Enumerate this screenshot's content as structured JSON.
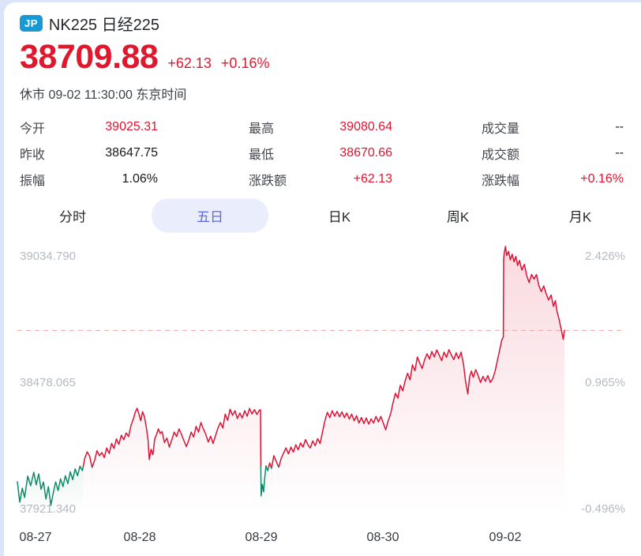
{
  "header": {
    "badge": "JP",
    "title": "NK225 日经225",
    "price": "38709.88",
    "change": "+62.13",
    "change_pct": "+0.16%",
    "status": "休市 09-02 11:30:00 东京时间"
  },
  "stats": {
    "columns": [
      {
        "rows": [
          {
            "label": "今开",
            "value": "39025.31"
          },
          {
            "label": "昨收",
            "value": "38647.75"
          },
          {
            "label": "振幅",
            "value": "1.06%"
          }
        ]
      },
      {
        "rows": [
          {
            "label": "最高",
            "value": "39080.64"
          },
          {
            "label": "最低",
            "value": "38670.66"
          },
          {
            "label": "涨跌额",
            "value": "+62.13"
          }
        ]
      },
      {
        "rows": [
          {
            "label": "成交量",
            "value": "--"
          },
          {
            "label": "成交额",
            "value": "--"
          },
          {
            "label": "涨跌幅",
            "value": "+0.16%"
          }
        ]
      }
    ]
  },
  "tabs": {
    "items": [
      {
        "label": "分时",
        "active": false
      },
      {
        "label": "五日",
        "active": true
      },
      {
        "label": "日K",
        "active": false
      },
      {
        "label": "周K",
        "active": false
      },
      {
        "label": "月K",
        "active": false
      }
    ]
  },
  "chart_data": {
    "type": "line",
    "title": "NK225 five-day minute line",
    "x_labels": [
      "08-27",
      "08-28",
      "08-29",
      "08-30",
      "09-02"
    ],
    "y_axis_labels": [
      "39034.790",
      "38478.065",
      "37921.340"
    ],
    "y_axis_values": [
      39034.79,
      38478.065,
      37921.34
    ],
    "right_axis_labels": [
      "2.426%",
      "0.965%",
      "-0.496%"
    ],
    "last_price": 38709.88,
    "prev_close": 38647.75,
    "day_high": 39080.64,
    "day_low": 38670.66,
    "x_unit": "percent_of_plot_width",
    "day_tick_pct": [
      0,
      20,
      40,
      60,
      80
    ],
    "colors": {
      "up": "#dd1235",
      "down": "#0f8a68",
      "dash": "#f0a8a2"
    },
    "points": [
      [
        0,
        38043
      ],
      [
        0.4,
        37953
      ],
      [
        0.8,
        38015
      ],
      [
        1.2,
        37974
      ],
      [
        1.7,
        38068
      ],
      [
        2.2,
        38026
      ],
      [
        2.7,
        38085
      ],
      [
        3.1,
        38030
      ],
      [
        3.5,
        38078
      ],
      [
        3.9,
        38010
      ],
      [
        4.3,
        38042
      ],
      [
        4.7,
        37967
      ],
      [
        5.1,
        38022
      ],
      [
        5.5,
        37939
      ],
      [
        5.9,
        37993
      ],
      [
        6.3,
        38042
      ],
      [
        6.7,
        38004
      ],
      [
        7.1,
        38056
      ],
      [
        7.5,
        38022
      ],
      [
        7.9,
        38070
      ],
      [
        8.3,
        38035
      ],
      [
        8.7,
        38087
      ],
      [
        9.1,
        38052
      ],
      [
        9.5,
        38100
      ],
      [
        9.9,
        38070
      ],
      [
        10.3,
        38112
      ],
      [
        10.7,
        38092
      ],
      [
        11.1,
        38148
      ],
      [
        11.5,
        38175
      ],
      [
        11.9,
        38155
      ],
      [
        12.3,
        38106
      ],
      [
        12.7,
        38137
      ],
      [
        13.1,
        38180
      ],
      [
        13.5,
        38158
      ],
      [
        13.9,
        38172
      ],
      [
        14.3,
        38150
      ],
      [
        14.7,
        38192
      ],
      [
        15.1,
        38168
      ],
      [
        15.5,
        38212
      ],
      [
        15.9,
        38190
      ],
      [
        16.3,
        38232
      ],
      [
        16.7,
        38208
      ],
      [
        17.1,
        38248
      ],
      [
        17.5,
        38228
      ],
      [
        17.9,
        38258
      ],
      [
        18.3,
        38242
      ],
      [
        18.7,
        38292
      ],
      [
        19.1,
        38322
      ],
      [
        19.4,
        38350
      ],
      [
        19.7,
        38367
      ],
      [
        20,
        38342
      ],
      [
        20.3,
        38312
      ],
      [
        20.6,
        38352
      ],
      [
        20.9,
        38330
      ],
      [
        21.2,
        38287
      ],
      [
        21.5,
        38225
      ],
      [
        21.7,
        38141
      ],
      [
        22,
        38186
      ],
      [
        22.3,
        38162
      ],
      [
        22.6,
        38232
      ],
      [
        22.9,
        38252
      ],
      [
        23.2,
        38276
      ],
      [
        23.5,
        38256
      ],
      [
        23.8,
        38264
      ],
      [
        24.2,
        38216
      ],
      [
        24.6,
        38236
      ],
      [
        25,
        38196
      ],
      [
        25.4,
        38228
      ],
      [
        25.8,
        38262
      ],
      [
        26.2,
        38242
      ],
      [
        26.6,
        38276
      ],
      [
        27,
        38252
      ],
      [
        27.4,
        38224
      ],
      [
        27.8,
        38198
      ],
      [
        28.2,
        38226
      ],
      [
        28.6,
        38262
      ],
      [
        29,
        38240
      ],
      [
        29.4,
        38287
      ],
      [
        29.8,
        38262
      ],
      [
        30.2,
        38304
      ],
      [
        30.6,
        38276
      ],
      [
        31,
        38252
      ],
      [
        31.4,
        38218
      ],
      [
        31.8,
        38244
      ],
      [
        32.2,
        38212
      ],
      [
        32.6,
        38246
      ],
      [
        33,
        38280
      ],
      [
        33.4,
        38304
      ],
      [
        33.8,
        38280
      ],
      [
        34.2,
        38341
      ],
      [
        34.6,
        38314
      ],
      [
        35,
        38363
      ],
      [
        35.4,
        38336
      ],
      [
        35.8,
        38356
      ],
      [
        36.2,
        38322
      ],
      [
        36.6,
        38346
      ],
      [
        37,
        38324
      ],
      [
        37.4,
        38356
      ],
      [
        37.8,
        38332
      ],
      [
        38.2,
        38366
      ],
      [
        38.6,
        38342
      ],
      [
        39,
        38361
      ],
      [
        39.4,
        38340
      ],
      [
        39.8,
        38358
      ],
      [
        40,
        38360
      ],
      [
        40.05,
        38100
      ],
      [
        40.1,
        37981
      ],
      [
        40.3,
        38032
      ],
      [
        40.5,
        37999
      ],
      [
        40.7,
        38062
      ],
      [
        40.9,
        38113
      ],
      [
        41.2,
        38092
      ],
      [
        41.5,
        38126
      ],
      [
        41.8,
        38102
      ],
      [
        42.2,
        38158
      ],
      [
        42.6,
        38132
      ],
      [
        43,
        38107
      ],
      [
        43.4,
        38146
      ],
      [
        43.8,
        38170
      ],
      [
        44.2,
        38192
      ],
      [
        44.6,
        38166
      ],
      [
        45,
        38196
      ],
      [
        45.4,
        38174
      ],
      [
        45.8,
        38206
      ],
      [
        46.2,
        38184
      ],
      [
        46.6,
        38214
      ],
      [
        47,
        38196
      ],
      [
        47.4,
        38229
      ],
      [
        47.8,
        38206
      ],
      [
        48.2,
        38192
      ],
      [
        48.6,
        38223
      ],
      [
        49,
        38202
      ],
      [
        49.4,
        38233
      ],
      [
        49.8,
        38212
      ],
      [
        50.2,
        38262
      ],
      [
        50.6,
        38312
      ],
      [
        51,
        38349
      ],
      [
        51.4,
        38326
      ],
      [
        51.8,
        38356
      ],
      [
        52.2,
        38332
      ],
      [
        52.6,
        38353
      ],
      [
        53,
        38330
      ],
      [
        53.4,
        38351
      ],
      [
        53.8,
        38326
      ],
      [
        54.2,
        38346
      ],
      [
        54.6,
        38320
      ],
      [
        55,
        38341
      ],
      [
        55.4,
        38312
      ],
      [
        55.8,
        38334
      ],
      [
        56.2,
        38302
      ],
      [
        56.6,
        38326
      ],
      [
        57,
        38300
      ],
      [
        57.4,
        38324
      ],
      [
        57.8,
        38297
      ],
      [
        58.2,
        38320
      ],
      [
        58.6,
        38302
      ],
      [
        59,
        38331
      ],
      [
        59.4,
        38307
      ],
      [
        59.8,
        38331
      ],
      [
        60.2,
        38302
      ],
      [
        60.6,
        38272
      ],
      [
        61,
        38312
      ],
      [
        61.4,
        38342
      ],
      [
        61.8,
        38392
      ],
      [
        62.2,
        38433
      ],
      [
        62.6,
        38412
      ],
      [
        63,
        38468
      ],
      [
        63.4,
        38444
      ],
      [
        63.8,
        38489
      ],
      [
        64.2,
        38521
      ],
      [
        64.6,
        38492
      ],
      [
        65,
        38558
      ],
      [
        65.4,
        38532
      ],
      [
        65.8,
        38593
      ],
      [
        66.2,
        38566
      ],
      [
        66.6,
        38542
      ],
      [
        67,
        38581
      ],
      [
        67.4,
        38607
      ],
      [
        67.8,
        38584
      ],
      [
        68.2,
        38617
      ],
      [
        68.6,
        38593
      ],
      [
        69,
        38624
      ],
      [
        69.4,
        38601
      ],
      [
        69.8,
        38577
      ],
      [
        70.2,
        38614
      ],
      [
        70.6,
        38591
      ],
      [
        71,
        38625
      ],
      [
        71.4,
        38601
      ],
      [
        71.8,
        38581
      ],
      [
        72.2,
        38611
      ],
      [
        72.6,
        38586
      ],
      [
        73,
        38614
      ],
      [
        73.4,
        38561
      ],
      [
        73.7,
        38492
      ],
      [
        74.1,
        38430
      ],
      [
        74.4,
        38506
      ],
      [
        74.7,
        38531
      ],
      [
        75,
        38503
      ],
      [
        75.4,
        38537
      ],
      [
        75.8,
        38511
      ],
      [
        76.2,
        38481
      ],
      [
        76.6,
        38507
      ],
      [
        77,
        38486
      ],
      [
        77.4,
        38511
      ],
      [
        77.8,
        38481
      ],
      [
        78.2,
        38496
      ],
      [
        78.6,
        38531
      ],
      [
        79,
        38581
      ],
      [
        79.4,
        38631
      ],
      [
        79.7,
        38668
      ],
      [
        79.95,
        38681
      ],
      [
        80,
        39025
      ],
      [
        80.1,
        39052
      ],
      [
        80.3,
        39080
      ],
      [
        80.5,
        39040
      ],
      [
        80.8,
        39058
      ],
      [
        81.1,
        39021
      ],
      [
        81.4,
        39046
      ],
      [
        81.7,
        39012
      ],
      [
        82,
        39036
      ],
      [
        82.3,
        38996
      ],
      [
        82.6,
        39018
      ],
      [
        83,
        38976
      ],
      [
        83.4,
        39001
      ],
      [
        83.8,
        38951
      ],
      [
        84.2,
        38921
      ],
      [
        84.6,
        38956
      ],
      [
        85,
        38936
      ],
      [
        85.4,
        38956
      ],
      [
        85.8,
        38906
      ],
      [
        86.2,
        38881
      ],
      [
        86.6,
        38906
      ],
      [
        87,
        38871
      ],
      [
        87.4,
        38844
      ],
      [
        87.8,
        38866
      ],
      [
        88.2,
        38816
      ],
      [
        88.5,
        38841
      ],
      [
        88.8,
        38791
      ],
      [
        89.1,
        38761
      ],
      [
        89.5,
        38712
      ],
      [
        89.8,
        38671
      ],
      [
        90,
        38710
      ]
    ]
  }
}
